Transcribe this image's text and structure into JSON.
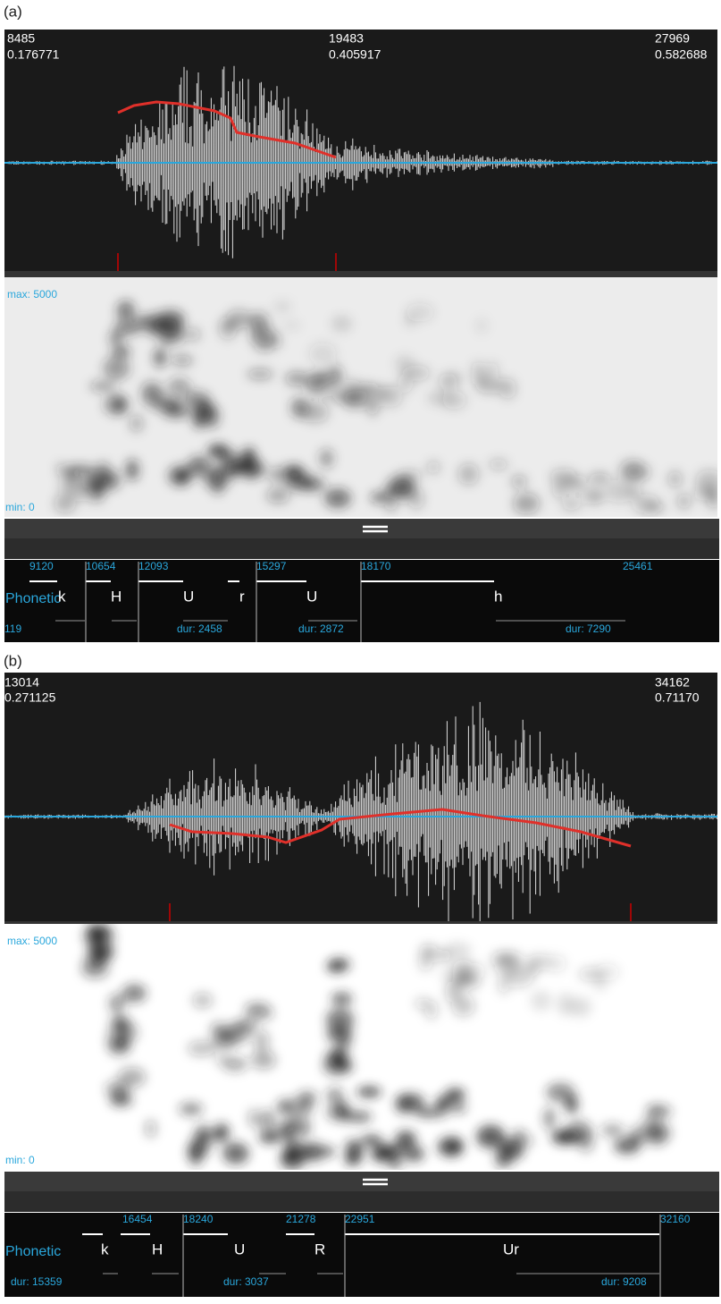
{
  "panels": [
    {
      "label": "(a)",
      "waveform": {
        "start_sample": "8485",
        "start_time": "0.176771",
        "mid_sample": "19483",
        "mid_time": "0.405917",
        "end_sample": "27969",
        "end_time": "0.582688"
      },
      "spectrogram": {
        "max": "max: 5000",
        "min": "min: 0"
      },
      "tier": {
        "name": "Phonetic",
        "boundaries": [
          "9120",
          "10654",
          "12093",
          "15297",
          "18170",
          "25461"
        ],
        "segments": [
          "k",
          "H",
          "U",
          "r",
          "U",
          "h"
        ],
        "durations": [
          "119",
          "dur: 2458",
          "dur: 2872",
          "dur: 7290"
        ]
      }
    },
    {
      "label": "(b)",
      "waveform": {
        "start_sample": "13014",
        "start_time": "0.271125",
        "end_sample": "34162",
        "end_time": "0.71170"
      },
      "spectrogram": {
        "max": "max: 5000",
        "min": "min: 0"
      },
      "tier": {
        "name": "Phonetic",
        "boundaries": [
          "16454",
          "18240",
          "21278",
          "22951",
          "32160"
        ],
        "segments": [
          "k",
          "H",
          "U",
          "R",
          "Ur"
        ],
        "durations": [
          "dur: 15359",
          "dur: 3037",
          "dur: 9208"
        ]
      }
    }
  ]
}
